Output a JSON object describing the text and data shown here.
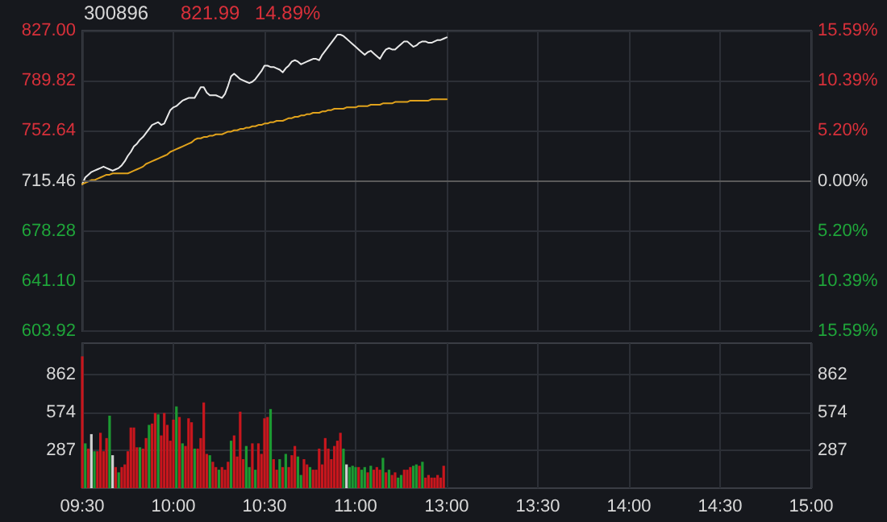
{
  "chart_data": [
    {
      "type": "line",
      "title": "300896",
      "annotations": [
        "821.99",
        "14.89%"
      ],
      "categories": [
        null,
        null,
        null,
        null,
        null,
        null,
        null,
        null,
        null,
        null,
        null,
        null,
        null,
        null,
        null,
        null,
        null,
        null,
        null,
        null,
        null,
        null,
        null,
        null,
        null,
        null,
        null,
        null,
        null,
        null,
        null,
        null,
        null,
        null,
        null,
        null,
        null,
        null,
        null,
        null,
        null,
        null,
        null,
        null,
        null,
        null,
        null,
        null,
        null,
        null,
        null,
        null,
        null,
        null,
        null,
        null,
        null,
        null,
        null,
        null,
        null,
        null,
        null,
        null,
        null,
        null,
        null,
        null,
        null,
        null,
        null,
        null,
        null,
        null,
        null,
        null,
        null,
        null,
        null,
        null,
        null,
        null,
        null,
        null,
        null,
        null,
        null,
        null,
        null,
        null,
        null,
        null,
        null,
        null,
        null,
        null,
        null,
        null,
        null,
        null,
        null,
        null,
        null,
        null,
        null,
        null,
        null,
        null,
        null,
        null,
        null,
        null,
        null,
        null,
        null,
        null,
        null,
        null,
        null,
        null,
        null,
        null,
        null,
        null,
        null,
        null,
        null,
        null,
        null,
        null,
        null,
        null,
        null,
        null,
        null,
        null,
        null,
        null,
        null,
        null,
        null,
        null,
        null,
        null,
        null,
        null,
        null,
        null,
        null,
        null,
        null,
        null,
        null,
        null,
        null,
        null,
        null,
        null,
        null,
        null,
        null,
        null,
        null,
        null,
        null,
        null,
        null,
        null,
        null,
        null,
        null,
        null,
        null,
        null,
        null,
        null,
        null,
        null,
        null,
        null,
        null,
        null,
        null,
        null,
        null,
        null,
        null,
        null,
        null,
        null,
        null,
        null,
        null,
        null,
        null,
        null,
        null,
        null,
        null,
        null,
        null,
        null,
        null,
        null,
        null,
        null,
        null,
        null,
        null,
        null,
        null,
        null,
        null,
        null,
        null,
        null,
        null,
        null,
        null,
        null,
        null,
        null,
        null,
        null,
        null,
        null,
        null,
        null,
        null,
        null,
        null,
        null,
        null,
        null,
        null,
        null,
        null,
        null,
        null,
        null,
        null
      ],
      "ylim": [
        603.92,
        827.0
      ],
      "yticks": [
        603.92,
        {
          "value": 641.1,
          "label": "641.10"
        },
        678.28,
        715.46,
        752.64,
        789.82,
        {
          "value": 827,
          "label": "827.00"
        }
      ],
      "y2lim": [
        -15.59,
        15.59
      ],
      "y2ticks": [
        {
          "value": -15.59,
          "label": "15.59%"
        },
        {
          "value": -10.39,
          "label": "10.39%"
        },
        {
          "value": -5.2,
          "label": "5.20%"
        },
        {
          "value": 0,
          "label": "0.00%"
        },
        {
          "value": 5.2,
          "label": "5.20%"
        },
        {
          "value": 10.39,
          "label": "10.39%"
        },
        {
          "value": 15.59,
          "label": "15.59%"
        }
      ],
      "tick_labels": "y",
      "grid": true,
      "ref_lines": [
        {
          "axis": "y",
          "value": 715.46,
          "color": "#5a5a5a"
        }
      ],
      "series": [
        {
          "color": "#e8e8e8",
          "values": [
            713,
            718,
            720,
            722,
            723,
            724,
            725,
            726,
            725,
            724,
            723,
            724,
            725,
            727,
            730,
            734,
            737,
            741,
            743,
            746,
            748,
            751,
            754,
            757,
            758,
            759,
            757,
            758,
            763,
            768,
            770,
            771,
            773,
            775,
            776,
            777,
            777,
            777,
            781,
            785,
            785,
            781,
            779,
            779,
            779,
            778,
            777,
            780,
            786,
            793,
            795,
            793,
            791,
            790,
            789,
            788,
            789,
            791,
            794,
            797,
            801,
            801,
            800,
            800,
            799,
            798,
            796,
            799,
            801,
            804,
            805,
            804,
            802,
            803,
            804,
            805,
            806,
            806,
            805,
            809,
            812,
            815,
            818,
            821,
            824,
            824,
            823,
            821,
            819,
            817,
            815,
            813,
            811,
            809,
            811,
            812,
            810,
            808,
            806,
            810,
            813,
            814,
            813,
            813,
            815,
            817,
            819,
            819,
            817,
            815,
            816,
            818,
            819,
            819,
            818,
            818,
            819,
            820,
            820,
            821,
            822,
            null,
            null,
            null,
            null,
            null,
            null,
            null,
            null,
            null,
            null,
            null,
            null,
            null,
            null,
            null,
            null,
            null,
            null,
            null,
            null,
            null,
            null,
            null,
            null,
            null,
            null,
            null,
            null,
            null,
            null,
            null,
            null,
            null,
            null,
            null,
            null,
            null,
            null,
            null,
            null,
            null,
            null,
            null,
            null,
            null,
            null,
            null,
            null,
            null,
            null,
            null,
            null,
            null,
            null,
            null,
            null,
            null,
            null,
            null,
            null,
            null,
            null,
            null,
            null,
            null,
            null,
            null,
            null,
            null,
            null,
            null,
            null,
            null,
            null,
            null,
            null,
            null,
            null,
            null,
            null,
            null,
            null,
            null,
            null,
            null,
            null,
            null,
            null,
            null,
            null,
            null,
            null,
            null,
            null,
            null,
            null,
            null,
            null,
            null,
            null,
            null,
            null,
            null,
            null,
            null,
            null,
            null,
            null,
            null,
            null,
            null,
            null,
            null,
            null,
            null,
            null,
            null,
            null,
            null,
            null
          ]
        },
        {
          "color": "#e0a21c",
          "values": [
            713,
            714,
            715,
            716,
            716,
            717,
            718,
            719,
            720,
            720,
            721,
            721,
            721,
            721,
            721,
            721,
            722,
            723,
            724,
            725,
            726,
            728,
            729,
            730,
            731,
            732,
            733,
            734,
            735,
            737,
            738,
            739,
            740,
            741,
            742,
            743,
            744,
            746,
            747,
            747,
            748,
            748,
            749,
            749,
            750,
            750,
            750,
            751,
            752,
            752,
            753,
            753,
            754,
            754,
            755,
            755,
            756,
            756,
            757,
            757,
            758,
            758,
            759,
            759,
            760,
            760,
            760,
            761,
            762,
            762,
            763,
            763,
            764,
            764,
            765,
            765,
            766,
            766,
            766,
            767,
            767,
            768,
            768,
            769,
            769,
            769,
            769,
            770,
            770,
            770,
            770,
            771,
            771,
            771,
            771,
            772,
            772,
            772,
            772,
            773,
            773,
            773,
            773,
            774,
            774,
            774,
            774,
            774,
            775,
            775,
            775,
            775,
            775,
            775,
            775,
            776,
            776,
            776,
            776,
            776,
            776,
            null,
            null,
            null,
            null,
            null,
            null,
            null,
            null,
            null,
            null,
            null,
            null,
            null,
            null,
            null,
            null,
            null,
            null,
            null,
            null,
            null,
            null,
            null,
            null,
            null,
            null,
            null,
            null,
            null,
            null,
            null,
            null,
            null,
            null,
            null,
            null,
            null,
            null,
            null,
            null,
            null,
            null,
            null,
            null,
            null,
            null,
            null,
            null,
            null,
            null,
            null,
            null,
            null,
            null,
            null,
            null,
            null,
            null,
            null,
            null,
            null,
            null,
            null,
            null,
            null,
            null,
            null,
            null,
            null,
            null,
            null,
            null,
            null,
            null,
            null,
            null,
            null,
            null,
            null,
            null,
            null,
            null,
            null,
            null,
            null,
            null,
            null,
            null,
            null,
            null,
            null,
            null,
            null,
            null,
            null,
            null,
            null,
            null,
            null,
            null,
            null,
            null,
            null,
            null,
            null,
            null,
            null,
            null,
            null,
            null,
            null,
            null,
            null,
            null,
            null,
            null,
            null,
            null,
            null,
            null
          ]
        }
      ]
    },
    {
      "type": "bar",
      "categories": [
        "09:30",
        null,
        null,
        null,
        null,
        null,
        null,
        null,
        null,
        null,
        null,
        null,
        null,
        null,
        null,
        null,
        null,
        null,
        null,
        null,
        null,
        null,
        null,
        null,
        null,
        null,
        null,
        null,
        null,
        null,
        "10:00",
        null,
        null,
        null,
        null,
        null,
        null,
        null,
        null,
        null,
        null,
        null,
        null,
        null,
        null,
        null,
        null,
        null,
        null,
        null,
        null,
        null,
        null,
        null,
        null,
        null,
        null,
        null,
        null,
        null,
        "10:30",
        null,
        null,
        null,
        null,
        null,
        null,
        null,
        null,
        null,
        null,
        null,
        null,
        null,
        null,
        null,
        null,
        null,
        null,
        null,
        null,
        null,
        null,
        null,
        null,
        null,
        null,
        null,
        null,
        null,
        "11:00",
        null,
        null,
        null,
        null,
        null,
        null,
        null,
        null,
        null,
        null,
        null,
        null,
        null,
        null,
        null,
        null,
        null,
        null,
        null,
        null,
        null,
        null,
        null,
        null,
        null,
        null,
        null,
        null,
        null,
        "13:00",
        null,
        null,
        null,
        null,
        null,
        null,
        null,
        null,
        null,
        null,
        null,
        null,
        null,
        null,
        null,
        null,
        null,
        null,
        null,
        null,
        null,
        null,
        null,
        null,
        null,
        null,
        null,
        null,
        null,
        "13:30",
        null,
        null,
        null,
        null,
        null,
        null,
        null,
        null,
        null,
        null,
        null,
        null,
        null,
        null,
        null,
        null,
        null,
        null,
        null,
        null,
        null,
        null,
        null,
        null,
        null,
        null,
        null,
        null,
        null,
        "14:00",
        null,
        null,
        null,
        null,
        null,
        null,
        null,
        null,
        null,
        null,
        null,
        null,
        null,
        null,
        null,
        null,
        null,
        null,
        null,
        null,
        null,
        null,
        null,
        null,
        null,
        null,
        null,
        null,
        null,
        "14:30",
        null,
        null,
        null,
        null,
        null,
        null,
        null,
        null,
        null,
        null,
        null,
        null,
        null,
        null,
        null,
        null,
        null,
        null,
        null,
        null,
        null,
        null,
        null,
        null,
        null,
        null,
        null,
        null,
        null,
        "15:00"
      ],
      "ylim": [
        0,
        1100
      ],
      "yticks": [
        287,
        574,
        862
      ],
      "y2lim": [
        0,
        1100
      ],
      "y2ticks": [
        287,
        574,
        862
      ],
      "grid": true,
      "values": [
        1000,
        340,
        300,
        410,
        280,
        280,
        420,
        280,
        380,
        550,
        250,
        160,
        120,
        160,
        180,
        280,
        460,
        460,
        310,
        310,
        300,
        380,
        480,
        490,
        570,
        560,
        400,
        570,
        480,
        360,
        520,
        620,
        540,
        340,
        320,
        530,
        500,
        300,
        300,
        380,
        650,
        260,
        250,
        200,
        160,
        140,
        160,
        140,
        200,
        360,
        400,
        240,
        580,
        220,
        320,
        160,
        340,
        140,
        340,
        260,
        530,
        540,
        600,
        220,
        140,
        220,
        160,
        260,
        160,
        250,
        320,
        240,
        100,
        220,
        180,
        160,
        140,
        140,
        300,
        180,
        380,
        300,
        220,
        320,
        360,
        420,
        300,
        180,
        160,
        170,
        160,
        160,
        140,
        160,
        120,
        170,
        140,
        160,
        140,
        230,
        120,
        140,
        100,
        120,
        80,
        100,
        140,
        140,
        160,
        170,
        180,
        170,
        200,
        80,
        100,
        80,
        80,
        100,
        80,
        170,
        null,
        null,
        null,
        null,
        null,
        null,
        null,
        null,
        null,
        null,
        null,
        null,
        null,
        null,
        null,
        null,
        null,
        null,
        null,
        null,
        null,
        null,
        null,
        null,
        null,
        null,
        null,
        null,
        null,
        null,
        null,
        null,
        null,
        null,
        null,
        null,
        null,
        null,
        null,
        null,
        null,
        null,
        null,
        null,
        null,
        null,
        null,
        null,
        null,
        null,
        null,
        null,
        null,
        null,
        null,
        null,
        null,
        null,
        null,
        null,
        null,
        null,
        null,
        null,
        null,
        null,
        null,
        null,
        null,
        null,
        null,
        null,
        null,
        null,
        null,
        null,
        null,
        null,
        null,
        null,
        null,
        null,
        null,
        null,
        null,
        null,
        null,
        null,
        null,
        null,
        null,
        null,
        null,
        null,
        null,
        null,
        null,
        null,
        null,
        null,
        null,
        null,
        null,
        null,
        null,
        null,
        null,
        null,
        null,
        null,
        null,
        null,
        null,
        null,
        null,
        null,
        null,
        null,
        null,
        null,
        null
      ],
      "colors": [
        "#c8161d",
        "#1c9a32",
        "#c8161d",
        "#d0d0d0",
        "#1c9a32",
        "#c8161d",
        "#c8161d",
        "#c8161d",
        "#c8161d",
        "#1c9a32",
        "#d0d0d0",
        "#c8161d",
        "#1c9a32",
        "#c8161d",
        "#c8161d",
        "#c8161d",
        "#c8161d",
        "#c8161d",
        "#c8161d",
        "#1c9a32",
        "#c8161d",
        "#c8161d",
        "#1c9a32",
        "#c8161d",
        "#c8161d",
        "#1c9a32",
        "#c8161d",
        "#c8161d",
        "#c8161d",
        "#c8161d",
        "#c8161d",
        "#1c9a32",
        "#c8161d",
        "#1c9a32",
        "#c8161d",
        "#c8161d",
        "#c8161d",
        "#1c9a32",
        "#c8161d",
        "#c8161d",
        "#c8161d",
        "#c8161d",
        "#1c9a32",
        "#c8161d",
        "#c8161d",
        "#1c9a32",
        "#c8161d",
        "#c8161d",
        "#c8161d",
        "#1c9a32",
        "#c8161d",
        "#c8161d",
        "#c8161d",
        "#c8161d",
        "#1c9a32",
        "#1c9a32",
        "#c8161d",
        "#1c9a32",
        "#c8161d",
        "#c8161d",
        "#c8161d",
        "#c8161d",
        "#1c9a32",
        "#c8161d",
        "#c8161d",
        "#1c9a32",
        "#c8161d",
        "#1c9a32",
        "#c8161d",
        "#c8161d",
        "#c8161d",
        "#1c9a32",
        "#1c9a32",
        "#c8161d",
        "#c8161d",
        "#1c9a32",
        "#c8161d",
        "#c8161d",
        "#c8161d",
        "#c8161d",
        "#c8161d",
        "#c8161d",
        "#c8161d",
        "#c8161d",
        "#c8161d",
        "#c8161d",
        "#1c9a32",
        "#d0d0d0",
        "#1c9a32",
        "#1c9a32",
        "#1c9a32",
        "#c8161d",
        "#1c9a32",
        "#1c9a32",
        "#c8161d",
        "#1c9a32",
        "#c8161d",
        "#c8161d",
        "#c8161d",
        "#1c9a32",
        "#c8161d",
        "#1c9a32",
        "#c8161d",
        "#c8161d",
        "#1c9a32",
        "#1c9a32",
        "#c8161d",
        "#c8161d",
        "#c8161d",
        "#1c9a32",
        "#1c9a32",
        "#c8161d",
        "#1c9a32",
        "#c8161d",
        "#c8161d",
        "#c8161d",
        "#c8161d",
        "#c8161d",
        "#c8161d",
        "#c8161d",
        null,
        null,
        null,
        null,
        null,
        null,
        null,
        null,
        null,
        null,
        null,
        null,
        null,
        null,
        null,
        null,
        null,
        null,
        null,
        null,
        null,
        null,
        null,
        null,
        null,
        null,
        null,
        null,
        null,
        null,
        null,
        null,
        null,
        null,
        null,
        null,
        null,
        null,
        null,
        null,
        null,
        null,
        null,
        null,
        null,
        null,
        null,
        null,
        null,
        null,
        null,
        null,
        null,
        null,
        null,
        null,
        null,
        null,
        null,
        null,
        null,
        null,
        null,
        null,
        null,
        null,
        null,
        null,
        null,
        null,
        null,
        null,
        null,
        null,
        null,
        null,
        null,
        null,
        null,
        null,
        null,
        null,
        null,
        null,
        null,
        null,
        null,
        null,
        null,
        null,
        null,
        null,
        null,
        null,
        null,
        null,
        null,
        null,
        null,
        null,
        null,
        null,
        null,
        null,
        null,
        null,
        null,
        null,
        null,
        null,
        null,
        null,
        null,
        null,
        null,
        null,
        null,
        null,
        null,
        null,
        null
      ]
    }
  ]
}
